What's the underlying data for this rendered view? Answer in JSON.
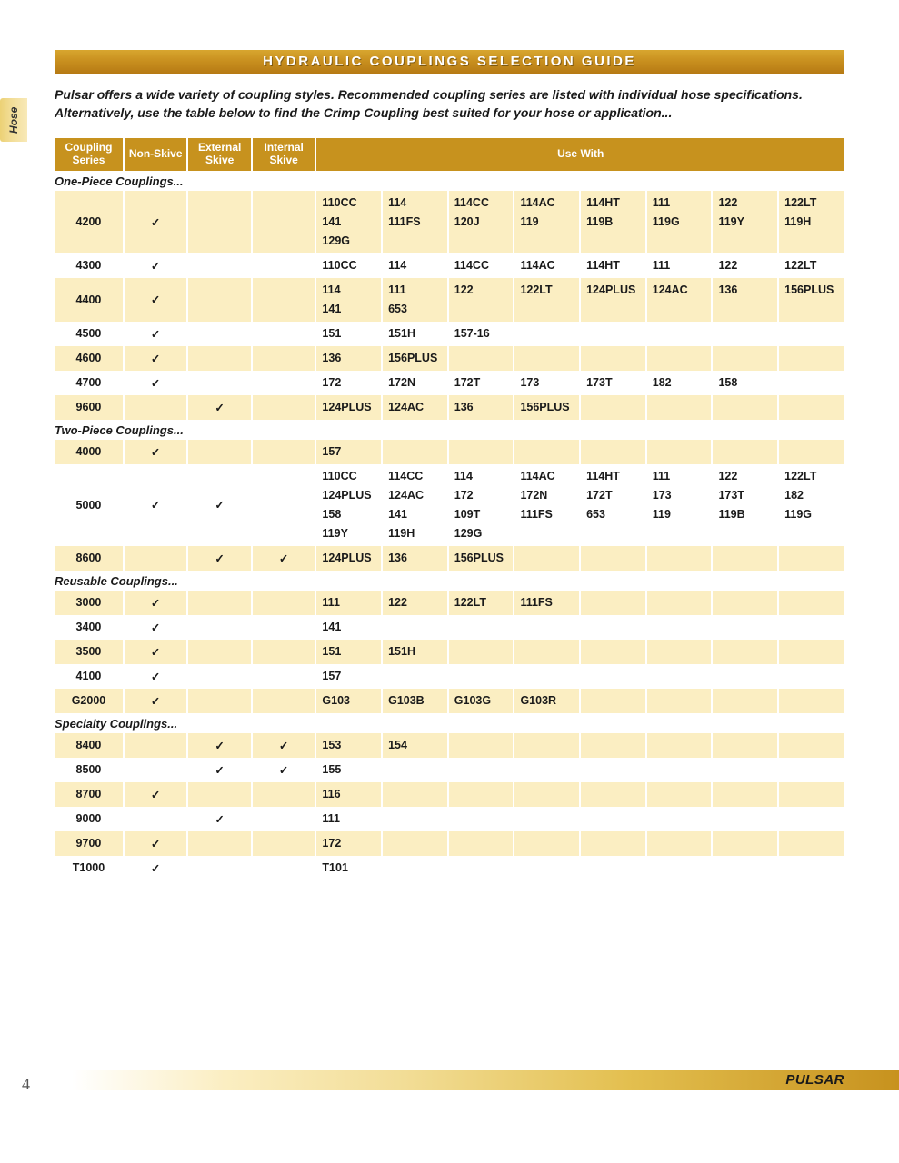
{
  "title": "HYDRAULIC COUPLINGS SELECTION GUIDE",
  "side_tab": "Hose",
  "intro": "Pulsar offers a wide variety of coupling styles. Recommended coupling series are listed with individual hose specifications. Alternatively, use the table below to find the Crimp Coupling best suited for your hose or application...",
  "page_number": "4",
  "brand": "PULSAR",
  "check_glyph": "✓",
  "colors": {
    "header_bg": "#c7921e",
    "header_text": "#ffffff",
    "row_shade": "#fbeec2",
    "row_plain": "#ffffff",
    "text": "#1a1a1a",
    "footer_gradient_end": "#c7921e"
  },
  "table": {
    "columns": {
      "series": "Coupling Series",
      "non_skive": "Non-Skive",
      "ext_skive": "External Skive",
      "int_skive": "Internal Skive",
      "use_with": "Use With"
    },
    "use_col_count": 8,
    "sections": [
      {
        "label": "One-Piece Couplings...",
        "rows": [
          {
            "series": "4200",
            "non_skive": true,
            "ext_skive": false,
            "int_skive": false,
            "shade": true,
            "use": [
              [
                "110CC",
                "114",
                "114CC",
                "114AC",
                "114HT",
                "111",
                "122",
                "122LT"
              ],
              [
                "141",
                "111FS",
                "120J",
                "119",
                "119B",
                "119G",
                "119Y",
                "119H"
              ],
              [
                "129G",
                "",
                "",
                "",
                "",
                "",
                "",
                ""
              ]
            ]
          },
          {
            "series": "4300",
            "non_skive": true,
            "ext_skive": false,
            "int_skive": false,
            "shade": false,
            "use": [
              [
                "110CC",
                "114",
                "114CC",
                "114AC",
                "114HT",
                "111",
                "122",
                "122LT"
              ]
            ]
          },
          {
            "series": "4400",
            "non_skive": true,
            "ext_skive": false,
            "int_skive": false,
            "shade": true,
            "use": [
              [
                "114",
                "111",
                "122",
                "122LT",
                "124PLUS",
                "124AC",
                "136",
                "156PLUS"
              ],
              [
                "141",
                "653",
                "",
                "",
                "",
                "",
                "",
                ""
              ]
            ]
          },
          {
            "series": "4500",
            "non_skive": true,
            "ext_skive": false,
            "int_skive": false,
            "shade": false,
            "use": [
              [
                "151",
                "151H",
                "157-16",
                "",
                "",
                "",
                "",
                ""
              ]
            ]
          },
          {
            "series": "4600",
            "non_skive": true,
            "ext_skive": false,
            "int_skive": false,
            "shade": true,
            "use": [
              [
                "136",
                "156PLUS",
                "",
                "",
                "",
                "",
                "",
                ""
              ]
            ]
          },
          {
            "series": "4700",
            "non_skive": true,
            "ext_skive": false,
            "int_skive": false,
            "shade": false,
            "use": [
              [
                "172",
                "172N",
                "172T",
                "173",
                "173T",
                "182",
                "158",
                ""
              ]
            ]
          },
          {
            "series": "9600",
            "non_skive": false,
            "ext_skive": true,
            "int_skive": false,
            "shade": true,
            "use": [
              [
                "124PLUS",
                "124AC",
                "136",
                "156PLUS",
                "",
                "",
                "",
                ""
              ]
            ]
          }
        ]
      },
      {
        "label": "Two-Piece Couplings...",
        "rows": [
          {
            "series": "4000",
            "non_skive": true,
            "ext_skive": false,
            "int_skive": false,
            "shade": true,
            "use": [
              [
                "157",
                "",
                "",
                "",
                "",
                "",
                "",
                ""
              ]
            ]
          },
          {
            "series": "5000",
            "non_skive": true,
            "ext_skive": true,
            "int_skive": false,
            "shade": false,
            "use": [
              [
                "110CC",
                "114CC",
                "114",
                "114AC",
                "114HT",
                "111",
                "122",
                "122LT"
              ],
              [
                "124PLUS",
                "124AC",
                "172",
                "172N",
                "172T",
                "173",
                "173T",
                "182"
              ],
              [
                "158",
                "141",
                "109T",
                "111FS",
                "653",
                "119",
                "119B",
                "119G"
              ],
              [
                "119Y",
                "119H",
                "129G",
                "",
                "",
                "",
                "",
                ""
              ]
            ]
          },
          {
            "series": "8600",
            "non_skive": false,
            "ext_skive": true,
            "int_skive": true,
            "shade": true,
            "use": [
              [
                "124PLUS",
                "136",
                "156PLUS",
                "",
                "",
                "",
                "",
                ""
              ]
            ]
          }
        ]
      },
      {
        "label": "Reusable Couplings...",
        "rows": [
          {
            "series": "3000",
            "non_skive": true,
            "ext_skive": false,
            "int_skive": false,
            "shade": true,
            "use": [
              [
                "111",
                "122",
                "122LT",
                "111FS",
                "",
                "",
                "",
                ""
              ]
            ]
          },
          {
            "series": "3400",
            "non_skive": true,
            "ext_skive": false,
            "int_skive": false,
            "shade": false,
            "use": [
              [
                "141",
                "",
                "",
                "",
                "",
                "",
                "",
                ""
              ]
            ]
          },
          {
            "series": "3500",
            "non_skive": true,
            "ext_skive": false,
            "int_skive": false,
            "shade": true,
            "use": [
              [
                "151",
                "151H",
                "",
                "",
                "",
                "",
                "",
                ""
              ]
            ]
          },
          {
            "series": "4100",
            "non_skive": true,
            "ext_skive": false,
            "int_skive": false,
            "shade": false,
            "use": [
              [
                "157",
                "",
                "",
                "",
                "",
                "",
                "",
                ""
              ]
            ]
          },
          {
            "series": "G2000",
            "non_skive": true,
            "ext_skive": false,
            "int_skive": false,
            "shade": true,
            "use": [
              [
                "G103",
                "G103B",
                "G103G",
                "G103R",
                "",
                "",
                "",
                ""
              ]
            ]
          }
        ]
      },
      {
        "label": "Specialty Couplings...",
        "rows": [
          {
            "series": "8400",
            "non_skive": false,
            "ext_skive": true,
            "int_skive": true,
            "shade": true,
            "use": [
              [
                "153",
                "154",
                "",
                "",
                "",
                "",
                "",
                ""
              ]
            ]
          },
          {
            "series": "8500",
            "non_skive": false,
            "ext_skive": true,
            "int_skive": true,
            "shade": false,
            "use": [
              [
                "155",
                "",
                "",
                "",
                "",
                "",
                "",
                ""
              ]
            ]
          },
          {
            "series": "8700",
            "non_skive": true,
            "ext_skive": false,
            "int_skive": false,
            "shade": true,
            "use": [
              [
                "116",
                "",
                "",
                "",
                "",
                "",
                "",
                ""
              ]
            ]
          },
          {
            "series": "9000",
            "non_skive": false,
            "ext_skive": true,
            "int_skive": false,
            "shade": false,
            "use": [
              [
                "111",
                "",
                "",
                "",
                "",
                "",
                "",
                ""
              ]
            ]
          },
          {
            "series": "9700",
            "non_skive": true,
            "ext_skive": false,
            "int_skive": false,
            "shade": true,
            "use": [
              [
                "172",
                "",
                "",
                "",
                "",
                "",
                "",
                ""
              ]
            ]
          },
          {
            "series": "T1000",
            "non_skive": true,
            "ext_skive": false,
            "int_skive": false,
            "shade": false,
            "use": [
              [
                "T101",
                "",
                "",
                "",
                "",
                "",
                "",
                ""
              ]
            ]
          }
        ]
      }
    ]
  }
}
